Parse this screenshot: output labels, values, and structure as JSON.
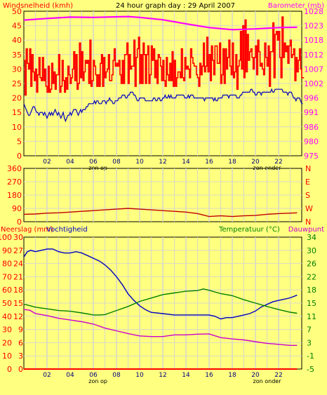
{
  "colors": {
    "background": "#FFFF80",
    "grid": "#D8D8C8",
    "wind_gust": "#FF0000",
    "wind_avg": "#0000C0",
    "barometer": "#FF00FF",
    "wind_direction": "#C00000",
    "humidity": "#0000C0",
    "temperature": "#008000",
    "dewpoint": "#CC00CC",
    "rain": "#FF0000",
    "axis_left": "#FF0000",
    "axis_right": "#FF00FF",
    "axis_bottom": "#000080"
  },
  "header": {
    "title": "24 hour graph day : 29 April 2007"
  },
  "chart_data": [
    {
      "type": "line",
      "id": "wind_barometer",
      "title": "24 hour graph day : 29 April 2007",
      "ylabel_left": "Windsnelheid (kmh)",
      "ylabel_right": "Barometer (mb)",
      "ylim_left": [
        0,
        50
      ],
      "yticks_left": [
        "0",
        "5",
        "10",
        "15",
        "20",
        "25",
        "30",
        "35",
        "40",
        "45",
        "50"
      ],
      "ylim_right": [
        975,
        1029
      ],
      "yticks_right": [
        975,
        980,
        986,
        991,
        996,
        1002,
        1007,
        1012,
        1018,
        1023,
        1028
      ],
      "xlim": [
        0,
        24
      ],
      "xticks": [
        "02",
        "04",
        "06",
        "08",
        "10",
        "12",
        "14",
        "16",
        "18",
        "20",
        "22"
      ],
      "annotations": [
        "zon op",
        "zon onder"
      ],
      "annotation_x": [
        6.4,
        21.0
      ],
      "grid": true,
      "series": [
        {
          "axis": "left",
          "step": 0.1,
          "x0": 0,
          "values": [
            33,
            21,
            37,
            32,
            30,
            37,
            24,
            35,
            29,
            26,
            30,
            22,
            28,
            34,
            27,
            26,
            34,
            26,
            30,
            24,
            22,
            31,
            22,
            23,
            32,
            25,
            29,
            23,
            28,
            28,
            35,
            22,
            24,
            33,
            26,
            22,
            27,
            23,
            31,
            28,
            25,
            27,
            30,
            36,
            26,
            35,
            23,
            25,
            39,
            27,
            36,
            26,
            29,
            33,
            32,
            33,
            25,
            40,
            24,
            26,
            33,
            31,
            28,
            24,
            28,
            24,
            32,
            35,
            24,
            34,
            27,
            29,
            30,
            35,
            26,
            26,
            28,
            33,
            37,
            31,
            32,
            31,
            33,
            28,
            25,
            33,
            25,
            35,
            35,
            39,
            25,
            35,
            30,
            31,
            31,
            40,
            24,
            34,
            37,
            41,
            25,
            35,
            25,
            39,
            35,
            25,
            35,
            38,
            25,
            28,
            38,
            33,
            37,
            27,
            33,
            25,
            35,
            34,
            31,
            26,
            33,
            26,
            24,
            34,
            28,
            26,
            32,
            26,
            36,
            24,
            33,
            24,
            27,
            29,
            29,
            27,
            37,
            27,
            26,
            34,
            30,
            31,
            30,
            27,
            37,
            34,
            32,
            31,
            31,
            28,
            27,
            24,
            32,
            28,
            31,
            39,
            29,
            31,
            41,
            29,
            35,
            26,
            38,
            33,
            28,
            38,
            38,
            32,
            32,
            39,
            25,
            28,
            37,
            25,
            37,
            30,
            34,
            40,
            31,
            28,
            39,
            27,
            29,
            35,
            23,
            31,
            33,
            43,
            30,
            45,
            27,
            47,
            29,
            42,
            33,
            36,
            37,
            34,
            30,
            34,
            38,
            28,
            40,
            36,
            31,
            32,
            30,
            28,
            39,
            34,
            31,
            38,
            24,
            36,
            36,
            46,
            27,
            42,
            43,
            40,
            43,
            34,
            27,
            48,
            34,
            39,
            36,
            38,
            32,
            38,
            40,
            34,
            35,
            37,
            26,
            34,
            29,
            33,
            37,
            30,
            27,
            27
          ]
        },
        {
          "axis": "left",
          "step": 0.1,
          "x0": 0,
          "values": [
            18,
            17,
            16,
            15,
            14,
            14,
            15,
            16,
            17,
            17,
            16,
            15,
            15,
            14,
            15,
            15,
            15,
            14,
            15,
            14,
            13,
            14,
            15,
            14,
            15,
            14,
            15,
            16,
            15,
            14,
            15,
            14,
            13,
            14,
            15,
            13,
            12,
            13,
            14,
            14,
            15,
            14,
            15,
            16,
            16,
            16,
            15,
            14,
            15,
            16,
            15,
            16,
            16,
            16,
            17,
            17,
            18,
            18,
            18,
            18,
            18,
            19,
            18,
            19,
            19,
            18,
            18,
            18,
            19,
            19,
            19,
            18,
            19,
            19,
            20,
            19,
            19,
            18,
            18,
            19,
            19,
            19,
            20,
            20,
            20,
            21,
            21,
            21,
            20,
            20,
            21,
            21,
            22,
            22,
            22,
            21,
            21,
            20,
            19,
            19,
            20,
            20,
            20,
            20,
            20,
            19,
            19,
            19,
            19,
            19,
            19,
            19,
            20,
            20,
            19,
            19,
            20,
            20,
            19,
            19,
            20,
            20,
            21,
            20,
            20,
            21,
            20,
            21,
            20,
            20,
            20,
            20,
            21,
            21,
            21,
            21,
            21,
            21,
            21,
            20,
            20,
            20,
            21,
            20,
            21,
            21,
            21,
            20,
            20,
            20,
            20,
            20,
            20,
            20,
            20,
            20,
            19,
            20,
            20,
            20,
            20,
            20,
            20,
            20,
            19,
            20,
            19,
            19,
            20,
            20,
            20,
            20,
            21,
            21,
            21,
            21,
            21,
            20,
            21,
            21,
            21,
            21,
            21,
            21,
            20,
            20,
            20,
            21,
            21,
            22,
            22,
            22,
            22,
            22,
            22,
            22,
            23,
            23,
            22,
            22,
            21,
            21,
            22,
            22,
            22,
            21,
            22,
            22,
            22,
            22,
            22,
            22,
            22,
            22,
            23,
            22,
            22,
            23,
            23,
            23,
            23,
            23,
            23,
            23,
            22,
            22,
            22,
            22,
            21,
            22,
            22,
            22,
            21,
            20,
            20,
            19,
            20,
            20,
            20,
            19,
            18,
            18
          ]
        },
        {
          "axis": "right",
          "x": [
            0,
            2,
            4,
            6,
            8,
            9,
            10,
            12,
            14,
            16,
            18,
            20,
            22,
            23.6
          ],
          "values": [
            1025.7,
            1026.3,
            1026.8,
            1026.7,
            1026.9,
            1027.0,
            1026.7,
            1025.8,
            1024.3,
            1022.9,
            1022.1,
            1022.4,
            1022.9,
            1023.0
          ]
        }
      ]
    },
    {
      "type": "line",
      "id": "wind_direction",
      "ylim": [
        0,
        360
      ],
      "yticks": [
        "0",
        "90",
        "180",
        "270",
        "360"
      ],
      "yticks_right": [
        "N",
        "W",
        "S",
        "E",
        "N"
      ],
      "xlim": [
        0,
        24
      ],
      "grid": true,
      "series": [
        {
          "x": [
            0,
            1,
            2,
            3,
            4,
            5,
            6,
            7,
            8,
            9,
            10,
            11,
            12,
            13,
            14,
            15,
            16,
            17,
            18,
            19,
            20,
            21,
            22,
            23,
            23.6
          ],
          "values": [
            50,
            52,
            58,
            60,
            65,
            70,
            75,
            80,
            85,
            90,
            85,
            80,
            75,
            70,
            65,
            55,
            35,
            40,
            35,
            40,
            42,
            50,
            55,
            58,
            60
          ]
        }
      ]
    },
    {
      "type": "line",
      "id": "climate",
      "ylabel_left": "Neerslag (mm)",
      "ylabel_left2": "Vochtigheid",
      "ylabel_right": "Temperatuur (°C)",
      "ylabel_right2": "Dauwpunt",
      "ylim_humidity": [
        0,
        100
      ],
      "yticks_humidity": [
        "0",
        "10",
        "20",
        "30",
        "40",
        "50",
        "60",
        "70",
        "80",
        "90",
        "100"
      ],
      "ylim_rain": [
        0,
        30
      ],
      "yticks_rain": [
        "0",
        "3",
        "6",
        "9",
        "12",
        "15",
        "18",
        "21",
        "24",
        "27",
        "30"
      ],
      "ylim_temperature": [
        -5,
        34
      ],
      "yticks_temperature": [
        "-5",
        "-1",
        "3",
        "7",
        "11",
        "15",
        "18",
        "22",
        "26",
        "30",
        "34"
      ],
      "xlim": [
        0,
        24
      ],
      "xticks": [
        "02",
        "04",
        "06",
        "08",
        "10",
        "12",
        "14",
        "16",
        "18",
        "20",
        "22"
      ],
      "annotations": [
        "zon op",
        "zon onder"
      ],
      "annotation_x": [
        6.4,
        21.0
      ],
      "grid": true,
      "series": [
        {
          "axis": "humidity",
          "x": [
            0,
            0.3,
            0.6,
            1,
            1.5,
            2,
            2.5,
            3,
            3.5,
            4,
            4.5,
            5,
            5.5,
            6,
            6.5,
            7,
            7.5,
            8,
            8.5,
            9,
            9.5,
            10,
            10.5,
            11,
            12,
            13,
            14,
            15,
            16,
            16.5,
            17,
            17.5,
            18,
            18.5,
            19,
            19.5,
            20,
            20.5,
            21,
            21.5,
            22,
            22.5,
            23,
            23.6
          ],
          "values": [
            85,
            89,
            90,
            89,
            90,
            91,
            91,
            89,
            88,
            88,
            89,
            88,
            86,
            84,
            82,
            79,
            75,
            70,
            64,
            57,
            52,
            48,
            45,
            43,
            42,
            41,
            41,
            41,
            41,
            40,
            38,
            39,
            39,
            40,
            41,
            42,
            44,
            47,
            49,
            51,
            52,
            53,
            54,
            56
          ]
        },
        {
          "axis": "temperature",
          "x": [
            0,
            1,
            2,
            3,
            4,
            5,
            6,
            6.5,
            7,
            7.5,
            8,
            9,
            10,
            11,
            12,
            13,
            14,
            15,
            15.5,
            16,
            17,
            18,
            19,
            20,
            21,
            22,
            23,
            23.6
          ],
          "values": [
            14.2,
            13.3,
            12.8,
            12.3,
            12.1,
            11.6,
            11.0,
            11.0,
            11.1,
            11.7,
            12.3,
            13.5,
            15.0,
            16.0,
            17.0,
            17.5,
            18.0,
            18.2,
            18.7,
            18.3,
            17.3,
            16.7,
            15.5,
            14.5,
            13.5,
            12.6,
            11.8,
            11.5
          ]
        },
        {
          "axis": "temperature",
          "x": [
            0,
            0.5,
            1,
            2,
            3,
            4,
            5,
            6,
            7,
            8,
            9,
            10,
            11,
            12,
            13,
            14,
            15,
            16,
            17,
            18,
            19,
            20,
            21,
            22,
            23,
            23.6
          ],
          "values": [
            12.6,
            12.4,
            11.4,
            10.8,
            10.0,
            9.5,
            9.0,
            8.3,
            7.1,
            6.3,
            5.5,
            4.8,
            4.6,
            4.6,
            5.1,
            5.1,
            5.3,
            5.4,
            4.3,
            3.9,
            3.6,
            3.1,
            2.6,
            2.3,
            2.0,
            2.0
          ]
        },
        {
          "axis": "rain",
          "x": [
            0,
            23.6
          ],
          "values": [
            0,
            0
          ]
        }
      ]
    }
  ]
}
